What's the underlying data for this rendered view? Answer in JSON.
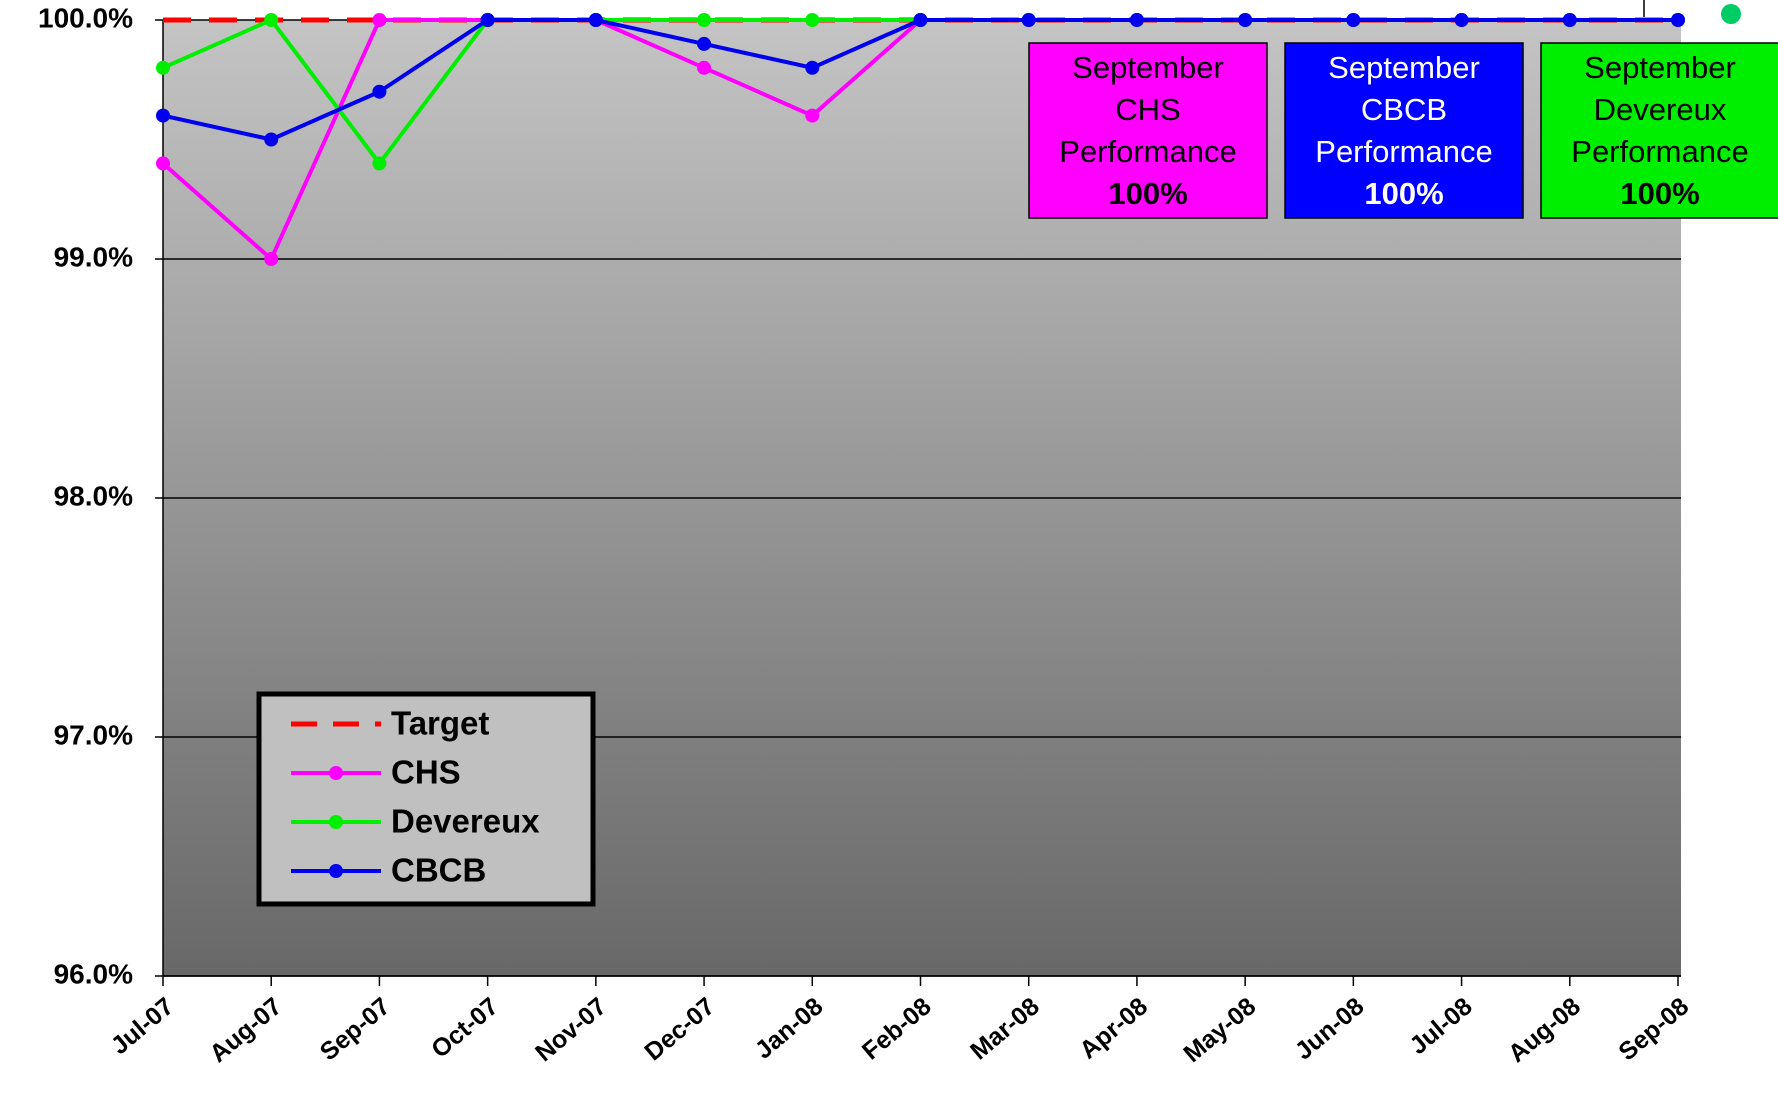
{
  "chart_data": {
    "type": "line",
    "categories": [
      "Jul-07",
      "Aug-07",
      "Sep-07",
      "Oct-07",
      "Nov-07",
      "Dec-07",
      "Jan-08",
      "Feb-08",
      "Mar-08",
      "Apr-08",
      "May-08",
      "Jun-08",
      "Jul-08",
      "Aug-08",
      "Sep-08"
    ],
    "series": [
      {
        "name": "Target",
        "color": "#ff0000",
        "dashed": true,
        "markers": false,
        "values": [
          100,
          100,
          100,
          100,
          100,
          100,
          100,
          100,
          100,
          100,
          100,
          100,
          100,
          100,
          100
        ]
      },
      {
        "name": "CHS",
        "color": "#ff00ff",
        "markers": true,
        "values": [
          99.4,
          99.0,
          100,
          100,
          100,
          99.8,
          99.6,
          100,
          100,
          100,
          100,
          100,
          100,
          100,
          100
        ]
      },
      {
        "name": "Devereux",
        "color": "#00ee00",
        "markers": true,
        "values": [
          99.8,
          100,
          99.4,
          100,
          100,
          100,
          100,
          100,
          100,
          100,
          100,
          100,
          100,
          100,
          100
        ]
      },
      {
        "name": "CBCB",
        "color": "#0000ee",
        "markers": true,
        "values": [
          99.6,
          99.5,
          99.7,
          100,
          100,
          99.9,
          99.8,
          100,
          100,
          100,
          100,
          100,
          100,
          100,
          100
        ]
      }
    ],
    "ylim": [
      96,
      100
    ],
    "yticks": [
      {
        "value": 96,
        "label": "96.0%"
      },
      {
        "value": 97,
        "label": "97.0%"
      },
      {
        "value": 98,
        "label": "98.0%"
      },
      {
        "value": 99,
        "label": "99.0%"
      },
      {
        "value": 100,
        "label": "100.0%"
      }
    ],
    "grid": true,
    "legend": "lower-left",
    "annotations": [
      {
        "lines": [
          "September",
          "CHS",
          "Performance"
        ],
        "highlight": "100%",
        "color": "#ff00ff",
        "text_color": "#000000"
      },
      {
        "lines": [
          "September",
          "CBCB",
          "Performance"
        ],
        "highlight": "100%",
        "color": "#0000ff",
        "text_color": "#ffffff"
      },
      {
        "lines": [
          "September",
          "Devereux",
          "Performance"
        ],
        "highlight": "100%",
        "color": "#00ee00",
        "text_color": "#000000"
      }
    ]
  }
}
